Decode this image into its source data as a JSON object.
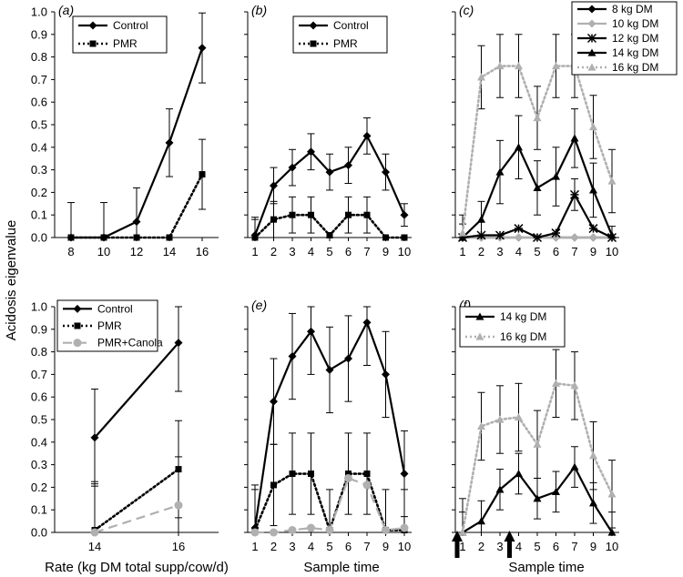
{
  "figure": {
    "ylabel": "Acidosis eigenvalue",
    "xlabel_left": "Rate (kg DM total supp/cow/d)",
    "xlabel_center": "Sample time",
    "xlabel_right": "Sample time",
    "yticks": [
      "0.0",
      "0.1",
      "0.2",
      "0.3",
      "0.4",
      "0.5",
      "0.6",
      "0.7",
      "0.8",
      "0.9",
      "1.0"
    ]
  },
  "chart_data": [
    {
      "panel": "(a)",
      "type": "line",
      "categories": [
        "8",
        "10",
        "12",
        "14",
        "16"
      ],
      "ylim": [
        0,
        1.0
      ],
      "series": [
        {
          "name": "Control",
          "style": "solid",
          "color": "#000000",
          "marker": "diamond",
          "values": [
            0.0,
            0.0,
            0.07,
            0.42,
            0.84
          ],
          "err": [
            0.155,
            0.155,
            0.15,
            0.15,
            0.155
          ]
        },
        {
          "name": "PMR",
          "style": "dotted",
          "color": "#000000",
          "marker": "square",
          "values": [
            0.0,
            0.0,
            0.0,
            0.0,
            0.28
          ],
          "err": [
            0.0,
            0.0,
            0.0,
            0.0,
            0.155
          ]
        }
      ]
    },
    {
      "panel": "(b)",
      "type": "line",
      "categories": [
        "1",
        "2",
        "3",
        "4",
        "5",
        "6",
        "7",
        "9",
        "10"
      ],
      "ylim": [
        0,
        1.0
      ],
      "series": [
        {
          "name": "Control",
          "style": "solid",
          "color": "#000000",
          "marker": "diamond",
          "values": [
            0.01,
            0.23,
            0.31,
            0.38,
            0.29,
            0.32,
            0.45,
            0.29,
            0.1
          ],
          "err": [
            0.08,
            0.08,
            0.08,
            0.08,
            0.08,
            0.08,
            0.08,
            0.08,
            0.05
          ]
        },
        {
          "name": "PMR",
          "style": "dotted",
          "color": "#000000",
          "marker": "square",
          "values": [
            0.0,
            0.08,
            0.1,
            0.1,
            0.01,
            0.1,
            0.1,
            0.0,
            0.0
          ],
          "err": [
            0.08,
            0.08,
            0.08,
            0.08,
            0.0,
            0.08,
            0.08,
            0.0,
            0.0
          ]
        }
      ]
    },
    {
      "panel": "(c)",
      "type": "line",
      "categories": [
        "1",
        "2",
        "3",
        "4",
        "5",
        "6",
        "7",
        "9",
        "10"
      ],
      "ylim": [
        0,
        1.0
      ],
      "series": [
        {
          "name": "8 kg DM",
          "style": "solid",
          "color": "#000000",
          "marker": "diamond",
          "values": [
            0,
            0,
            0,
            0,
            0,
            0,
            0,
            0,
            0
          ],
          "err": [
            0,
            0,
            0,
            0,
            0,
            0,
            0,
            0,
            0
          ]
        },
        {
          "name": "10 kg DM",
          "style": "solid",
          "color": "#b0b0b0",
          "marker": "diamond",
          "values": [
            0,
            0,
            0,
            0,
            0,
            0,
            0,
            0,
            0
          ],
          "err": [
            0,
            0,
            0,
            0,
            0,
            0,
            0,
            0,
            0
          ]
        },
        {
          "name": "12 kg DM",
          "style": "solid",
          "color": "#000000",
          "marker": "star",
          "values": [
            0.0,
            0.01,
            0.01,
            0.04,
            0.0,
            0.02,
            0.19,
            0.04,
            0.0
          ],
          "err": [
            0,
            0,
            0,
            0,
            0,
            0,
            0.07,
            0,
            0
          ]
        },
        {
          "name": "14 kg DM",
          "style": "solid",
          "color": "#000000",
          "marker": "triangle",
          "values": [
            0.0,
            0.08,
            0.29,
            0.4,
            0.22,
            0.27,
            0.44,
            0.21,
            0.01
          ],
          "err": [
            0.06,
            0.08,
            0.14,
            0.14,
            0.12,
            0.13,
            0.13,
            0.12,
            0.04
          ]
        },
        {
          "name": "16 kg DM",
          "style": "dotted",
          "color": "#b0b0b0",
          "marker": "triangle",
          "values": [
            0.02,
            0.71,
            0.76,
            0.76,
            0.53,
            0.76,
            0.76,
            0.49,
            0.25
          ],
          "err": [
            0.08,
            0.14,
            0.14,
            0.14,
            0.14,
            0.14,
            0.14,
            0.14,
            0.14
          ]
        }
      ]
    },
    {
      "panel": "(d)",
      "type": "line",
      "categories": [
        "14",
        "16"
      ],
      "ylim": [
        0,
        1.0
      ],
      "series": [
        {
          "name": "Control",
          "style": "solid",
          "color": "#000000",
          "marker": "diamond",
          "values": [
            0.42,
            0.84
          ],
          "err": [
            0.215,
            0.215
          ]
        },
        {
          "name": "PMR",
          "style": "dotted",
          "color": "#000000",
          "marker": "square",
          "values": [
            0.01,
            0.28
          ],
          "err": [
            0.215,
            0.215
          ]
        },
        {
          "name": "PMR+Canola",
          "style": "dashed",
          "color": "#b0b0b0",
          "marker": "circle",
          "values": [
            0.0,
            0.12
          ],
          "err": [
            0.215,
            0.215
          ]
        }
      ]
    },
    {
      "panel": "(e)",
      "type": "line",
      "categories": [
        "1",
        "2",
        "3",
        "4",
        "5",
        "6",
        "7",
        "9",
        "10"
      ],
      "ylim": [
        0,
        1.0
      ],
      "series": [
        {
          "name": "Control",
          "style": "solid",
          "color": "#000000",
          "marker": "diamond",
          "values": [
            0.02,
            0.58,
            0.78,
            0.89,
            0.72,
            0.77,
            0.93,
            0.7,
            0.26
          ],
          "err": [
            0.19,
            0.19,
            0.19,
            0.19,
            0.19,
            0.19,
            0.19,
            0.19,
            0.19
          ]
        },
        {
          "name": "PMR",
          "style": "dotted",
          "color": "#000000",
          "marker": "square",
          "values": [
            0.01,
            0.21,
            0.26,
            0.26,
            0.01,
            0.26,
            0.26,
            0.01,
            0.01
          ],
          "err": [
            0.18,
            0.18,
            0.18,
            0.18,
            0.18,
            0.18,
            0.18,
            0.18,
            0.18
          ]
        },
        {
          "name": "PMR+Canola",
          "style": "dashed",
          "color": "#b0b0b0",
          "marker": "circle",
          "values": [
            0.0,
            0.0,
            0.01,
            0.02,
            0.01,
            0.24,
            0.21,
            0.01,
            0.02
          ],
          "err": [
            0,
            0,
            0,
            0,
            0,
            0,
            0,
            0,
            0
          ]
        }
      ]
    },
    {
      "panel": "(f)",
      "type": "line",
      "categories": [
        "1",
        "2",
        "3",
        "4",
        "5",
        "6",
        "7",
        "9",
        "10"
      ],
      "ylim": [
        0,
        1.0
      ],
      "series": [
        {
          "name": "14 kg DM",
          "style": "solid",
          "color": "#000000",
          "marker": "triangle",
          "values": [
            0.0,
            0.05,
            0.19,
            0.26,
            0.15,
            0.18,
            0.29,
            0.13,
            0.0
          ],
          "err": [
            0.09,
            0.09,
            0.09,
            0.09,
            0.09,
            0.09,
            0.09,
            0.09,
            0.09
          ]
        },
        {
          "name": "16 kg DM",
          "style": "dotted",
          "color": "#b0b0b0",
          "marker": "triangle",
          "values": [
            0.0,
            0.47,
            0.5,
            0.51,
            0.39,
            0.66,
            0.65,
            0.34,
            0.17
          ],
          "err": [
            0.15,
            0.15,
            0.15,
            0.15,
            0.15,
            0.15,
            0.15,
            0.15,
            0.15
          ]
        }
      ],
      "arrows_at": [
        "1",
        "4"
      ]
    }
  ]
}
